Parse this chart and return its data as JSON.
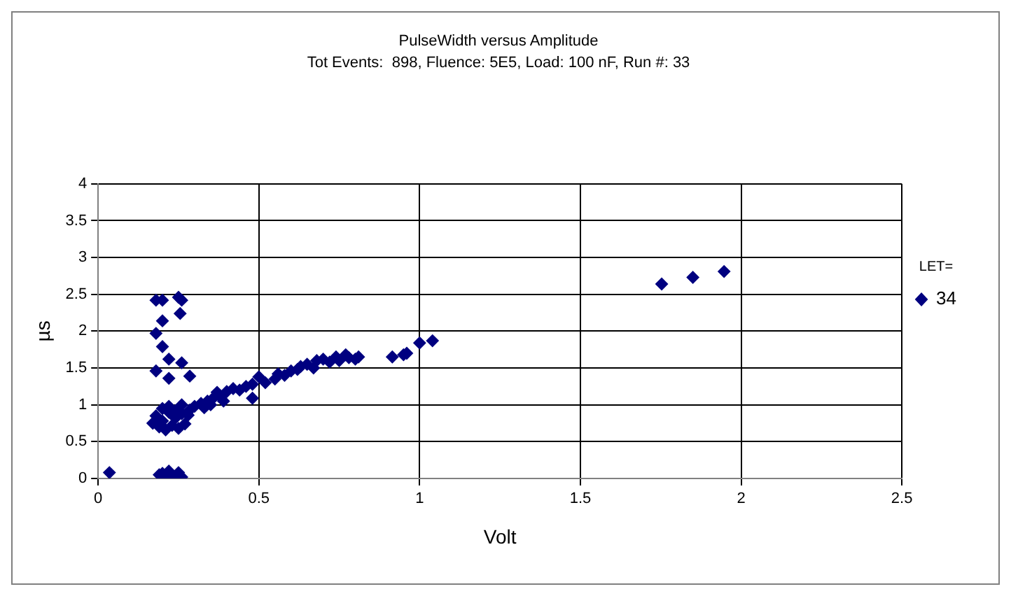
{
  "chart_data": {
    "type": "scatter",
    "title": "PulseWidth versus Amplitude",
    "subtitle": "Tot Events:  898, Fluence: 5E5, Load: 100 nF, Run #: 33",
    "xlabel": "Volt",
    "ylabel": "µs",
    "legend_title": "LET=",
    "legend": "right",
    "marker": "diamond",
    "grid": true,
    "xlim": [
      0,
      2.5
    ],
    "xticks": [
      0,
      0.5,
      1,
      1.5,
      2,
      2.5
    ],
    "ylim": [
      0,
      4
    ],
    "yticks": [
      0,
      0.5,
      1,
      1.5,
      2,
      2.5,
      3,
      3.5,
      4
    ],
    "series": [
      {
        "name": "34",
        "color": "#000080",
        "x": [
          0.035,
          0.19,
          0.2,
          0.22,
          0.24,
          0.26,
          0.21,
          0.25,
          0.18,
          0.2,
          0.25,
          0.26,
          0.255,
          0.2,
          0.18,
          0.2,
          0.22,
          0.26,
          0.18,
          0.22,
          0.285,
          0.17,
          0.18,
          0.2,
          0.22,
          0.24,
          0.26,
          0.28,
          0.19,
          0.21,
          0.23,
          0.25,
          0.27,
          0.2,
          0.22,
          0.24,
          0.26,
          0.285,
          0.3,
          0.32,
          0.34,
          0.36,
          0.37,
          0.38,
          0.4,
          0.33,
          0.35,
          0.39,
          0.42,
          0.44,
          0.46,
          0.48,
          0.5,
          0.52,
          0.48,
          0.55,
          0.56,
          0.58,
          0.6,
          0.62,
          0.63,
          0.65,
          0.67,
          0.68,
          0.7,
          0.72,
          0.74,
          0.75,
          0.77,
          0.78,
          0.8,
          0.81,
          0.915,
          0.95,
          0.96,
          1.0,
          1.04,
          1.753,
          1.85,
          1.947
        ],
        "values": [
          0.08,
          0.05,
          0.07,
          0.1,
          0.03,
          0.02,
          0.02,
          0.08,
          2.42,
          2.42,
          2.46,
          2.42,
          2.24,
          2.14,
          1.97,
          1.79,
          1.62,
          1.57,
          1.46,
          1.36,
          1.39,
          0.75,
          0.85,
          0.78,
          0.9,
          0.82,
          0.88,
          0.86,
          0.7,
          0.66,
          0.72,
          0.68,
          0.74,
          0.95,
          0.98,
          0.92,
          1.0,
          0.93,
          0.98,
          1.02,
          1.05,
          1.1,
          1.17,
          1.12,
          1.18,
          0.96,
          1.0,
          1.05,
          1.22,
          1.2,
          1.25,
          1.28,
          1.38,
          1.3,
          1.09,
          1.35,
          1.42,
          1.4,
          1.46,
          1.48,
          1.52,
          1.55,
          1.5,
          1.6,
          1.62,
          1.58,
          1.65,
          1.6,
          1.68,
          1.64,
          1.62,
          1.65,
          1.65,
          1.68,
          1.7,
          1.84,
          1.87,
          2.64,
          2.73,
          2.81
        ]
      }
    ]
  }
}
